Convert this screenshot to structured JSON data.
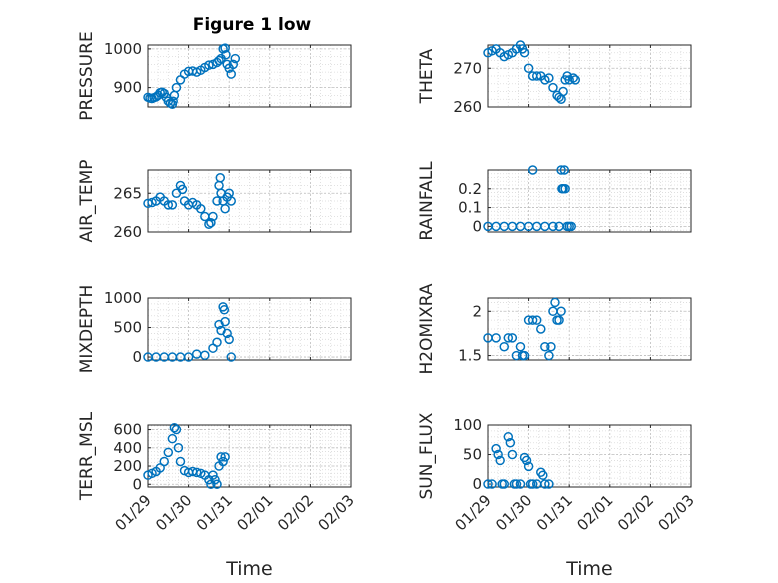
{
  "title": "Figure 1 low",
  "x_dates": [
    "01/29",
    "01/30",
    "01/31",
    "02/01",
    "02/02",
    "02/03"
  ],
  "xlabel": "Time",
  "marker_color": "#0072BD",
  "chart_data": [
    {
      "type": "scatter",
      "name": "PRESSURE",
      "ylabel": "PRESSURE",
      "ylim": [
        850,
        1010
      ],
      "yticks": [
        900,
        1000
      ],
      "ytick_labels": [
        "900",
        "1000"
      ],
      "points": [
        [
          0.0,
          875
        ],
        [
          0.05,
          873
        ],
        [
          0.1,
          872
        ],
        [
          0.15,
          874
        ],
        [
          0.2,
          876
        ],
        [
          0.25,
          880
        ],
        [
          0.3,
          887
        ],
        [
          0.35,
          888
        ],
        [
          0.4,
          885
        ],
        [
          0.45,
          875
        ],
        [
          0.5,
          865
        ],
        [
          0.55,
          860
        ],
        [
          0.6,
          857
        ],
        [
          0.62,
          865
        ],
        [
          0.65,
          880
        ],
        [
          0.7,
          900
        ],
        [
          0.8,
          920
        ],
        [
          0.9,
          935
        ],
        [
          1.0,
          942
        ],
        [
          1.1,
          943
        ],
        [
          1.2,
          940
        ],
        [
          1.3,
          945
        ],
        [
          1.4,
          952
        ],
        [
          1.5,
          958
        ],
        [
          1.6,
          960
        ],
        [
          1.7,
          965
        ],
        [
          1.75,
          970
        ],
        [
          1.8,
          975
        ],
        [
          1.85,
          1000
        ],
        [
          1.9,
          1002
        ],
        [
          1.92,
          985
        ],
        [
          1.95,
          960
        ],
        [
          2.0,
          950
        ],
        [
          2.05,
          935
        ],
        [
          2.1,
          960
        ],
        [
          2.15,
          975
        ]
      ]
    },
    {
      "type": "scatter",
      "name": "THETA",
      "ylabel": "THETA",
      "ylim": [
        260,
        276
      ],
      "yticks": [
        260,
        270
      ],
      "ytick_labels": [
        "260",
        "270"
      ],
      "points": [
        [
          0.0,
          274
        ],
        [
          0.1,
          274.5
        ],
        [
          0.2,
          275
        ],
        [
          0.3,
          274
        ],
        [
          0.4,
          273
        ],
        [
          0.5,
          273.5
        ],
        [
          0.6,
          274
        ],
        [
          0.7,
          275
        ],
        [
          0.8,
          276
        ],
        [
          0.85,
          275
        ],
        [
          0.9,
          274
        ],
        [
          1.0,
          270
        ],
        [
          1.1,
          268
        ],
        [
          1.2,
          268
        ],
        [
          1.3,
          268
        ],
        [
          1.4,
          267
        ],
        [
          1.5,
          267.5
        ],
        [
          1.6,
          265
        ],
        [
          1.7,
          263
        ],
        [
          1.75,
          262.5
        ],
        [
          1.8,
          262
        ],
        [
          1.85,
          264
        ],
        [
          1.9,
          267
        ],
        [
          1.95,
          268
        ],
        [
          2.0,
          267
        ],
        [
          2.1,
          267.5
        ],
        [
          2.15,
          267
        ]
      ]
    },
    {
      "type": "scatter",
      "name": "AIR_TEMP",
      "ylabel": "AIR_TEMP",
      "ylim": [
        260,
        268
      ],
      "yticks": [
        260,
        265
      ],
      "ytick_labels": [
        "260",
        "265"
      ],
      "points": [
        [
          0.0,
          263.7
        ],
        [
          0.1,
          263.8
        ],
        [
          0.2,
          264
        ],
        [
          0.3,
          264.5
        ],
        [
          0.4,
          264
        ],
        [
          0.5,
          263.5
        ],
        [
          0.6,
          263.5
        ],
        [
          0.7,
          265
        ],
        [
          0.8,
          266
        ],
        [
          0.85,
          265.5
        ],
        [
          0.9,
          264
        ],
        [
          1.0,
          263.5
        ],
        [
          1.1,
          263.8
        ],
        [
          1.2,
          263.5
        ],
        [
          1.3,
          263
        ],
        [
          1.4,
          262
        ],
        [
          1.5,
          261
        ],
        [
          1.55,
          261.2
        ],
        [
          1.6,
          262
        ],
        [
          1.7,
          264
        ],
        [
          1.75,
          266
        ],
        [
          1.78,
          267
        ],
        [
          1.8,
          265
        ],
        [
          1.85,
          264
        ],
        [
          1.9,
          263
        ],
        [
          1.95,
          264.5
        ],
        [
          2.0,
          265
        ],
        [
          2.05,
          264
        ]
      ]
    },
    {
      "type": "scatter",
      "name": "RAINFALL",
      "ylabel": "RAINFALL",
      "ylim": [
        -0.03,
        0.3
      ],
      "yticks": [
        0,
        0.1,
        0.2
      ],
      "ytick_labels": [
        "0",
        "0.1",
        "0.2"
      ],
      "points": [
        [
          0.0,
          0
        ],
        [
          0.2,
          0
        ],
        [
          0.4,
          0
        ],
        [
          0.6,
          0
        ],
        [
          0.8,
          0
        ],
        [
          1.0,
          0
        ],
        [
          1.1,
          0.3
        ],
        [
          1.2,
          0
        ],
        [
          1.4,
          0
        ],
        [
          1.6,
          0
        ],
        [
          1.75,
          0
        ],
        [
          1.8,
          0.3
        ],
        [
          1.82,
          0.2
        ],
        [
          1.85,
          0.2
        ],
        [
          1.88,
          0.3
        ],
        [
          1.9,
          0.2
        ],
        [
          1.95,
          0
        ],
        [
          2.0,
          0
        ],
        [
          2.05,
          0
        ]
      ]
    },
    {
      "type": "scatter",
      "name": "MIXDEPTH",
      "ylabel": "MIXDEPTH",
      "ylim": [
        -50,
        1000
      ],
      "yticks": [
        0,
        500,
        1000
      ],
      "ytick_labels": [
        "0",
        "500",
        "1000"
      ],
      "points": [
        [
          0.0,
          0
        ],
        [
          0.2,
          0
        ],
        [
          0.4,
          0
        ],
        [
          0.6,
          0
        ],
        [
          0.8,
          0
        ],
        [
          1.0,
          0
        ],
        [
          1.2,
          50
        ],
        [
          1.4,
          30
        ],
        [
          1.6,
          150
        ],
        [
          1.7,
          250
        ],
        [
          1.75,
          550
        ],
        [
          1.8,
          450
        ],
        [
          1.85,
          850
        ],
        [
          1.88,
          800
        ],
        [
          1.9,
          600
        ],
        [
          1.95,
          400
        ],
        [
          2.0,
          300
        ],
        [
          2.05,
          0
        ]
      ]
    },
    {
      "type": "scatter",
      "name": "H2OMIXRA",
      "ylabel": "H2OMIXRA",
      "ylim": [
        1.45,
        2.15
      ],
      "yticks": [
        1.5,
        2
      ],
      "ytick_labels": [
        "1.5",
        "2"
      ],
      "points": [
        [
          0.0,
          1.7
        ],
        [
          0.2,
          1.7
        ],
        [
          0.4,
          1.6
        ],
        [
          0.5,
          1.7
        ],
        [
          0.6,
          1.7
        ],
        [
          0.7,
          1.5
        ],
        [
          0.8,
          1.6
        ],
        [
          0.85,
          1.5
        ],
        [
          0.9,
          1.5
        ],
        [
          1.0,
          1.9
        ],
        [
          1.1,
          1.9
        ],
        [
          1.2,
          1.9
        ],
        [
          1.3,
          1.8
        ],
        [
          1.4,
          1.6
        ],
        [
          1.5,
          1.5
        ],
        [
          1.55,
          1.6
        ],
        [
          1.6,
          2.0
        ],
        [
          1.65,
          2.1
        ],
        [
          1.7,
          1.9
        ],
        [
          1.75,
          1.9
        ],
        [
          1.8,
          2.0
        ]
      ]
    },
    {
      "type": "scatter",
      "name": "TERR_MSL",
      "ylabel": "TERR_MSL",
      "ylim": [
        -30,
        650
      ],
      "yticks": [
        0,
        200,
        400,
        600
      ],
      "ytick_labels": [
        "0",
        "200",
        "400",
        "600"
      ],
      "points": [
        [
          0.0,
          100
        ],
        [
          0.1,
          120
        ],
        [
          0.2,
          140
        ],
        [
          0.3,
          180
        ],
        [
          0.4,
          250
        ],
        [
          0.5,
          350
        ],
        [
          0.6,
          500
        ],
        [
          0.65,
          620
        ],
        [
          0.7,
          600
        ],
        [
          0.75,
          400
        ],
        [
          0.8,
          250
        ],
        [
          0.9,
          150
        ],
        [
          1.0,
          130
        ],
        [
          1.1,
          140
        ],
        [
          1.2,
          130
        ],
        [
          1.3,
          120
        ],
        [
          1.4,
          100
        ],
        [
          1.5,
          50
        ],
        [
          1.55,
          0
        ],
        [
          1.6,
          100
        ],
        [
          1.65,
          50
        ],
        [
          1.7,
          0
        ],
        [
          1.75,
          200
        ],
        [
          1.8,
          300
        ],
        [
          1.85,
          250
        ],
        [
          1.9,
          300
        ]
      ]
    },
    {
      "type": "scatter",
      "name": "SUN_FLUX",
      "ylabel": "SUN_FLUX",
      "ylim": [
        -5,
        100
      ],
      "yticks": [
        0,
        50,
        100
      ],
      "ytick_labels": [
        "0",
        "50",
        "100"
      ],
      "points": [
        [
          0.0,
          0
        ],
        [
          0.1,
          0
        ],
        [
          0.2,
          60
        ],
        [
          0.25,
          50
        ],
        [
          0.3,
          40
        ],
        [
          0.35,
          0
        ],
        [
          0.4,
          0
        ],
        [
          0.5,
          80
        ],
        [
          0.55,
          70
        ],
        [
          0.6,
          50
        ],
        [
          0.65,
          0
        ],
        [
          0.7,
          0
        ],
        [
          0.8,
          0
        ],
        [
          0.9,
          45
        ],
        [
          0.95,
          40
        ],
        [
          1.0,
          30
        ],
        [
          1.05,
          0
        ],
        [
          1.1,
          0
        ],
        [
          1.2,
          0
        ],
        [
          1.3,
          20
        ],
        [
          1.35,
          15
        ],
        [
          1.4,
          0
        ],
        [
          1.5,
          0
        ]
      ]
    }
  ]
}
